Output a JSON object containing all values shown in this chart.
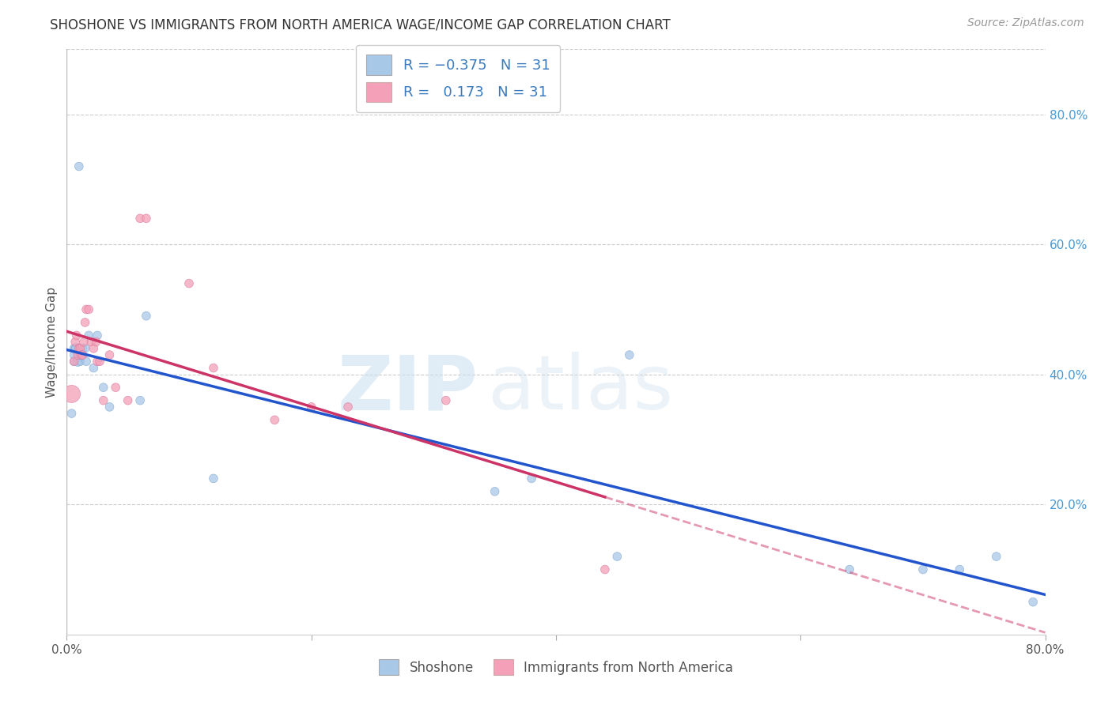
{
  "title": "SHOSHONE VS IMMIGRANTS FROM NORTH AMERICA WAGE/INCOME GAP CORRELATION CHART",
  "source": "Source: ZipAtlas.com",
  "ylabel": "Wage/Income Gap",
  "xlim": [
    0.0,
    0.8
  ],
  "ylim": [
    0.0,
    0.9
  ],
  "legend_label1": "R = -0.375   N = 31",
  "legend_label2": "R =  0.173   N = 31",
  "legend_bottom1": "Shoshone",
  "legend_bottom2": "Immigrants from North America",
  "shoshone_color": "#a8c8e8",
  "immigrant_color": "#f4a0b8",
  "shoshone_line_color": "#2255cc",
  "immigrant_line_color": "#cc3366",
  "watermark_zip": "ZIP",
  "watermark_atlas": "atlas",
  "shoshone_x": [
    0.01,
    0.004,
    0.006,
    0.006,
    0.006,
    0.007,
    0.008,
    0.009,
    0.01,
    0.011,
    0.012,
    0.013,
    0.015,
    0.016,
    0.018,
    0.022,
    0.025,
    0.03,
    0.035,
    0.06,
    0.065,
    0.12,
    0.35,
    0.38,
    0.45,
    0.46,
    0.64,
    0.7,
    0.73,
    0.76,
    0.79
  ],
  "shoshone_y": [
    0.72,
    0.34,
    0.42,
    0.43,
    0.44,
    0.44,
    0.44,
    0.42,
    0.43,
    0.42,
    0.43,
    0.44,
    0.44,
    0.42,
    0.46,
    0.41,
    0.46,
    0.38,
    0.35,
    0.36,
    0.49,
    0.24,
    0.22,
    0.24,
    0.12,
    0.43,
    0.1,
    0.1,
    0.1,
    0.12,
    0.05
  ],
  "shoshone_size": [
    60,
    60,
    60,
    60,
    60,
    60,
    80,
    80,
    60,
    60,
    80,
    60,
    60,
    60,
    60,
    60,
    60,
    60,
    60,
    60,
    60,
    60,
    60,
    60,
    60,
    60,
    60,
    60,
    60,
    60,
    60
  ],
  "immigrant_x": [
    0.004,
    0.006,
    0.007,
    0.008,
    0.009,
    0.01,
    0.011,
    0.012,
    0.013,
    0.014,
    0.015,
    0.016,
    0.018,
    0.02,
    0.022,
    0.024,
    0.025,
    0.027,
    0.03,
    0.035,
    0.04,
    0.05,
    0.06,
    0.065,
    0.1,
    0.12,
    0.17,
    0.2,
    0.23,
    0.31,
    0.44
  ],
  "immigrant_y": [
    0.37,
    0.42,
    0.45,
    0.46,
    0.43,
    0.44,
    0.44,
    0.43,
    0.43,
    0.45,
    0.48,
    0.5,
    0.5,
    0.45,
    0.44,
    0.45,
    0.42,
    0.42,
    0.36,
    0.43,
    0.38,
    0.36,
    0.64,
    0.64,
    0.54,
    0.41,
    0.33,
    0.35,
    0.35,
    0.36,
    0.1
  ],
  "immigrant_size": [
    250,
    60,
    60,
    60,
    60,
    60,
    60,
    60,
    60,
    60,
    60,
    60,
    60,
    60,
    60,
    60,
    60,
    60,
    60,
    60,
    60,
    60,
    60,
    60,
    60,
    60,
    60,
    60,
    60,
    60,
    60
  ]
}
